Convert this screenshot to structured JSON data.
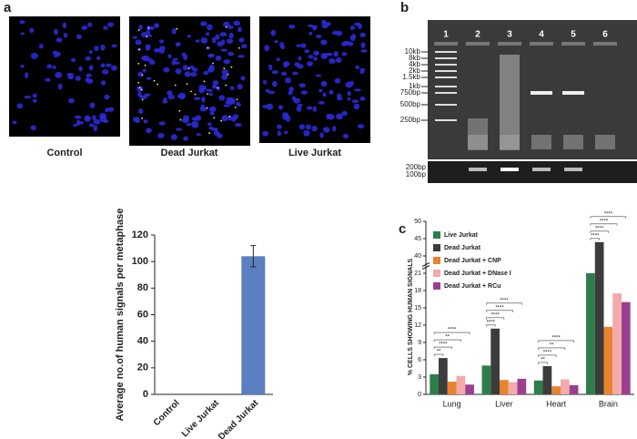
{
  "panels": [
    "a",
    "b",
    "c"
  ],
  "images": [
    "Control",
    "Dead Jurkat",
    "Live Jurkat"
  ],
  "gel": {
    "lanes": [
      "1",
      "2",
      "3",
      "4",
      "5",
      "6"
    ],
    "ladder": [
      "10kb",
      "8kb",
      "4kb",
      "2kb",
      "1.5kb",
      "1kb",
      "750bp",
      "500bp",
      "250bp"
    ],
    "ladder_bottom": [
      "200bp",
      "100bp"
    ]
  },
  "chart_data": [
    {
      "type": "bar",
      "y_label": "Average no.of human signals per metaphase",
      "categories": [
        "Control",
        "Live Jurkat",
        "Dead Jurkat"
      ],
      "values": [
        0,
        0,
        104
      ],
      "errors": [
        0,
        0,
        8
      ],
      "color": "#5b7fc0",
      "ylim": [
        0,
        120
      ],
      "yticks": [
        0,
        20,
        40,
        60,
        80,
        100,
        120
      ]
    },
    {
      "type": "grouped_bar",
      "y_label": "% CELLS SHOWING HUMAN SIGNALS",
      "categories": [
        "Lung",
        "Liver",
        "Heart",
        "Brain"
      ],
      "series": [
        {
          "name": "Live Jurkat",
          "color": "#2e7d4a",
          "values": [
            3.5,
            5,
            2.4,
            21
          ]
        },
        {
          "name": "Dead Jurkat",
          "color": "#3c3c3c",
          "values": [
            6.3,
            11.4,
            4.9,
            44
          ]
        },
        {
          "name": "Dead Jurkat + CNP",
          "color": "#e8832e",
          "values": [
            2.2,
            2.5,
            1.4,
            11.7
          ]
        },
        {
          "name": "Dead Jurkat + DNase I",
          "color": "#f2aaaa",
          "values": [
            3.2,
            2.1,
            2.6,
            17.5
          ]
        },
        {
          "name": "Dead Jurkat + RCu",
          "color": "#9b3f8e",
          "values": [
            1.7,
            2.7,
            1.6,
            16
          ]
        }
      ],
      "ylim": [
        0,
        50
      ],
      "yticks": [
        0,
        3,
        6,
        9,
        12,
        15,
        18,
        21,
        40,
        45,
        50
      ],
      "axis_break": true,
      "legend": "upper-left",
      "significance": [
        [
          "**",
          "****",
          "**",
          "****"
        ],
        [
          "****",
          "****",
          "****",
          "****"
        ],
        [
          "**",
          "****",
          "**",
          "****"
        ],
        [
          "****",
          "****",
          "****",
          "****"
        ]
      ]
    }
  ]
}
